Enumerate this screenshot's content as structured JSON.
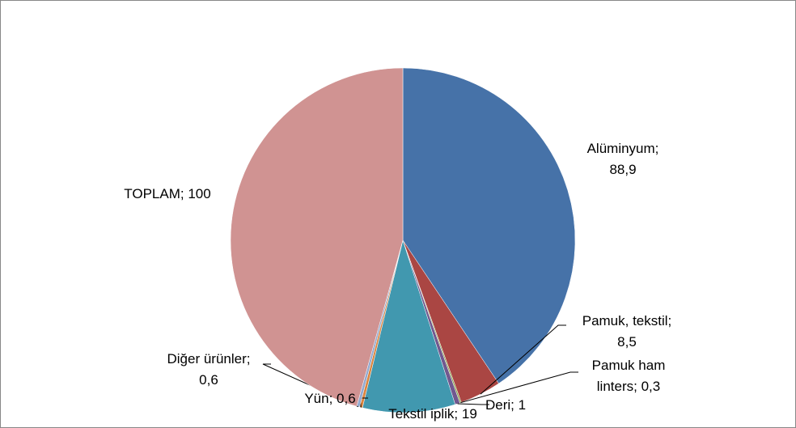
{
  "chart_data": {
    "type": "pie",
    "values": [
      88.9,
      8.5,
      0.3,
      1,
      19,
      0.6,
      0.6,
      100
    ],
    "value_labels": [
      "Alüminyum;\n88,9",
      "Pamuk, tekstil;\n8,5",
      "Pamuk ham\nlinters; 0,3",
      "Deri; 1",
      "Tekstil iplik; 19",
      "Yün; 0,6",
      "Diğer ürünler;\n0,6",
      "TOPLAM; 100"
    ],
    "colors": [
      "#4672a8",
      "#aa4643",
      "#89a54e",
      "#71588f",
      "#4198af",
      "#db843d",
      "#93a9cf",
      "#d09392"
    ]
  }
}
